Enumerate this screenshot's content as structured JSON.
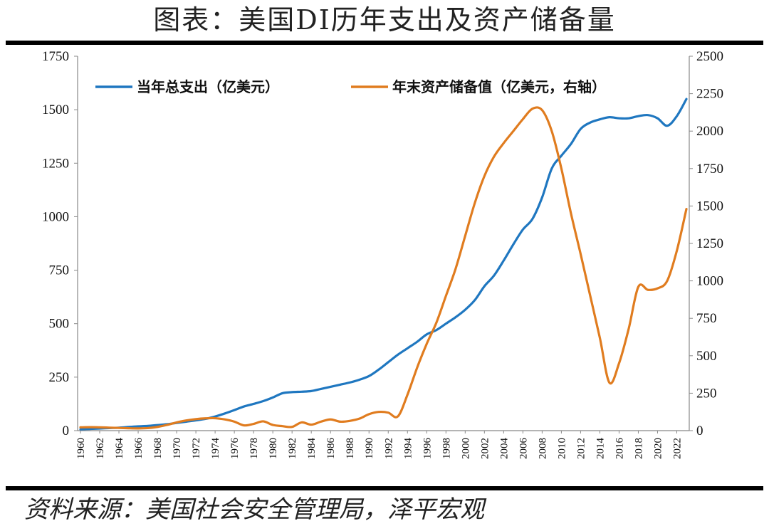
{
  "title": "图表：美国DI历年支出及资产储备量",
  "source": "资料来源：美国社会安全管理局，泽平宏观",
  "chart_data": {
    "type": "line",
    "title": "图表：美国DI历年支出及资产储备量",
    "xlabel": "",
    "ylabel": "",
    "y_left": {
      "min": 0,
      "max": 1750,
      "ticks": [
        0,
        250,
        500,
        750,
        1000,
        1250,
        1500,
        1750
      ]
    },
    "y_right": {
      "min": 0,
      "max": 2500,
      "ticks": [
        0,
        250,
        500,
        750,
        1000,
        1250,
        1500,
        1750,
        2000,
        2250,
        2500
      ]
    },
    "x_tick_labels": [
      "1960",
      "1962",
      "1964",
      "1966",
      "1968",
      "1970",
      "1972",
      "1974",
      "1976",
      "1978",
      "1980",
      "1982",
      "1984",
      "1986",
      "1988",
      "1990",
      "1992",
      "1994",
      "1996",
      "1998",
      "2000",
      "2002",
      "2004",
      "2006",
      "2008",
      "2010",
      "2012",
      "2014",
      "2016",
      "2018",
      "2020",
      "2022"
    ],
    "years": [
      1960,
      1961,
      1962,
      1963,
      1964,
      1965,
      1966,
      1967,
      1968,
      1969,
      1970,
      1971,
      1972,
      1973,
      1974,
      1975,
      1976,
      1977,
      1978,
      1979,
      1980,
      1981,
      1982,
      1983,
      1984,
      1985,
      1986,
      1987,
      1988,
      1989,
      1990,
      1991,
      1992,
      1993,
      1994,
      1995,
      1996,
      1997,
      1998,
      1999,
      2000,
      2001,
      2002,
      2003,
      2004,
      2005,
      2006,
      2007,
      2008,
      2009,
      2010,
      2011,
      2012,
      2013,
      2014,
      2015,
      2016,
      2017,
      2018,
      2019,
      2020,
      2021,
      2022,
      2023
    ],
    "series": [
      {
        "name": "当年总支出（亿美元）",
        "axis": "left",
        "color": "#1f77c0",
        "values": [
          6,
          8,
          10,
          12,
          14,
          17,
          20,
          22,
          26,
          30,
          36,
          42,
          48,
          55,
          66,
          80,
          96,
          113,
          125,
          138,
          155,
          175,
          180,
          182,
          185,
          195,
          205,
          215,
          225,
          238,
          255,
          285,
          320,
          355,
          385,
          415,
          450,
          470,
          500,
          530,
          565,
          610,
          675,
          725,
          795,
          870,
          940,
          990,
          1090,
          1225,
          1285,
          1340,
          1410,
          1440,
          1455,
          1465,
          1460,
          1460,
          1470,
          1475,
          1460,
          1425,
          1470,
          1550
        ]
      },
      {
        "name": "年末资产储备值（亿美元，右轴）",
        "axis": "right",
        "color": "#e07c1f",
        "values": [
          22,
          23,
          22,
          20,
          18,
          16,
          15,
          17,
          25,
          38,
          55,
          68,
          77,
          82,
          83,
          75,
          60,
          35,
          45,
          62,
          38,
          30,
          25,
          55,
          40,
          60,
          75,
          60,
          65,
          80,
          110,
          125,
          120,
          95,
          240,
          420,
          580,
          720,
          900,
          1080,
          1300,
          1520,
          1700,
          1830,
          1920,
          2000,
          2080,
          2150,
          2140,
          2000,
          1750,
          1450,
          1180,
          900,
          620,
          320,
          450,
          680,
          960,
          940,
          950,
          1000,
          1200,
          1480
        ]
      }
    ],
    "legend": "top"
  }
}
